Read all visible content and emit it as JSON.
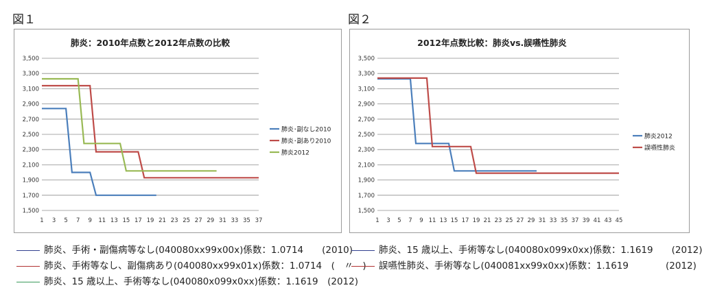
{
  "figures": [
    {
      "label": "図１"
    },
    {
      "label": "図２"
    }
  ],
  "chart_data": [
    {
      "type": "line",
      "title": "肺炎：2010年点数と2012年点数の比較",
      "xlabel": "",
      "ylabel": "",
      "ylim": [
        1500,
        3500
      ],
      "yticks": [
        "1,500",
        "1,700",
        "1,900",
        "2,100",
        "2,300",
        "2,500",
        "2,700",
        "2,900",
        "3,100",
        "3,300",
        "3,500"
      ],
      "xlim": [
        1,
        37
      ],
      "xticks": [
        "1",
        "3",
        "5",
        "7",
        "9",
        "11",
        "13",
        "15",
        "17",
        "19",
        "21",
        "23",
        "25",
        "27",
        "29",
        "31",
        "33",
        "35",
        "37"
      ],
      "grid": "horizontal",
      "legend_position": "right",
      "series": [
        {
          "name": "肺炎･副なし2010",
          "color": "#4a7ebb",
          "x": [
            1,
            5,
            6,
            9,
            10,
            20
          ],
          "y": [
            2840,
            2840,
            2000,
            2000,
            1700,
            1700
          ]
        },
        {
          "name": "肺炎･副あり2010",
          "color": "#be4b48",
          "x": [
            1,
            9,
            10,
            17,
            18,
            37
          ],
          "y": [
            3140,
            3140,
            2270,
            2270,
            1930,
            1930
          ]
        },
        {
          "name": "肺炎2012",
          "color": "#98b954",
          "x": [
            1,
            7,
            8,
            14,
            15,
            30
          ],
          "y": [
            3230,
            3230,
            2380,
            2380,
            2020,
            2020
          ]
        }
      ]
    },
    {
      "type": "line",
      "title": "2012年点数比較：肺炎vs.誤嚥性肺炎",
      "xlabel": "",
      "ylabel": "",
      "ylim": [
        1500,
        3500
      ],
      "yticks": [
        "1,500",
        "1,700",
        "1,900",
        "2,100",
        "2,300",
        "2,500",
        "2,700",
        "2,900",
        "3,100",
        "3,300",
        "3,500"
      ],
      "xlim": [
        1,
        45
      ],
      "xticks": [
        "1",
        "3",
        "5",
        "7",
        "9",
        "11",
        "13",
        "15",
        "17",
        "19",
        "21",
        "23",
        "25",
        "27",
        "29",
        "31",
        "33",
        "35",
        "37",
        "39",
        "41",
        "43",
        "45"
      ],
      "grid": "horizontal",
      "legend_position": "right",
      "series": [
        {
          "name": "肺炎2012",
          "color": "#4a7ebb",
          "x": [
            1,
            7,
            8,
            14,
            15,
            30
          ],
          "y": [
            3230,
            3230,
            2380,
            2380,
            2020,
            2020
          ]
        },
        {
          "name": "誤嚥性肺炎",
          "color": "#be4b48",
          "x": [
            1,
            10,
            11,
            18,
            19,
            45
          ],
          "y": [
            3240,
            3240,
            2340,
            2340,
            1990,
            1990
          ]
        }
      ]
    }
  ],
  "captions": {
    "left": [
      {
        "color": "#2f3f8f",
        "text": "肺炎、手術・副傷病等なし(040080xx99x00x)係数：1.0714　　(2010)"
      },
      {
        "color": "#b03030",
        "text": "肺炎、手術等なし、副傷病あり(040080xx99x01x)係数：1.0714　(　〃　)"
      },
      {
        "color": "#3a9a5a",
        "text": "肺炎、15 歳以上、手術等なし(040080x099x0xx)係数：1.1619　(2012)"
      }
    ],
    "right": [
      {
        "color": "#2f3f8f",
        "text": "肺炎、15 歳以上、手術等なし(040080x099x0xx)係数：1.1619　　(2012)"
      },
      {
        "color": "#b03030",
        "text": "誤嚥性肺炎、手術等なし(040081xx99x0xx)係数：1.1619　　　　(2012)"
      }
    ]
  }
}
